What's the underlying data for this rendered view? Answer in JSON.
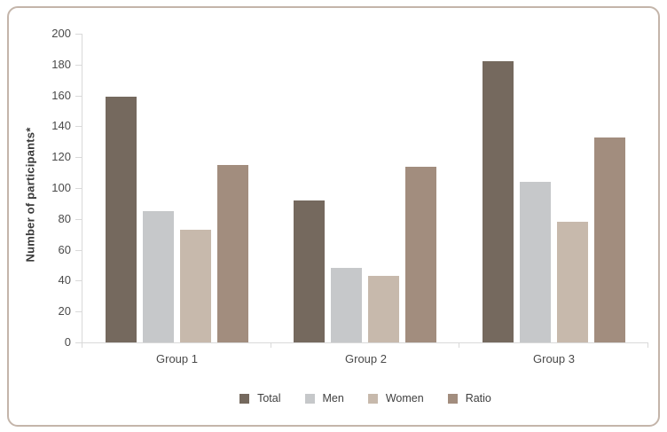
{
  "window": {
    "background": "#ffffff",
    "card_border_color": "#c4b5aa"
  },
  "chart_data": {
    "type": "bar",
    "ylabel": "Number of participants*",
    "xlabel": "",
    "categories": [
      "Group 1",
      "Group 2",
      "Group 3"
    ],
    "series": [
      {
        "name": "Total",
        "color": "#75695e",
        "values": [
          159,
          92,
          182
        ]
      },
      {
        "name": "Men",
        "color": "#c6c8ca",
        "values": [
          85,
          48,
          104
        ]
      },
      {
        "name": "Women",
        "color": "#c7b9ac",
        "values": [
          73,
          43,
          78
        ]
      },
      {
        "name": "Ratio",
        "color": "#a28d7e",
        "values": [
          115,
          114,
          133
        ]
      }
    ],
    "ylim": [
      0,
      200
    ],
    "ytick_step": 20,
    "yticks": [
      0,
      20,
      40,
      60,
      80,
      100,
      120,
      140,
      160,
      180,
      200
    ],
    "grid": false,
    "legend_position": "bottom",
    "axis_color": "#d9d9d9",
    "tick_text_color": "#4a4a4a",
    "legend_text_color": "#3f3f3f"
  }
}
